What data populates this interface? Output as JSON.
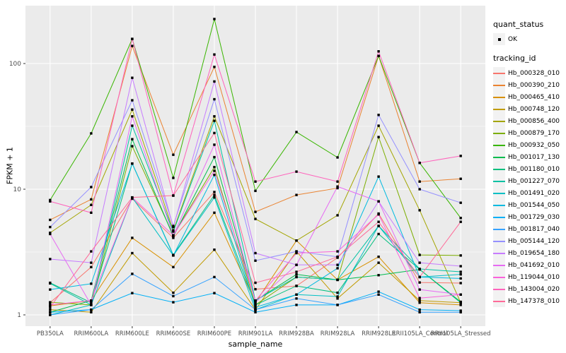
{
  "chart_data": {
    "type": "line",
    "title": "",
    "xlabel": "sample_name",
    "ylabel": "FPKM + 1",
    "y_scale": "log10",
    "ylim": [
      0.82,
      290
    ],
    "grid": true,
    "panel_bg": "#EBEBEB",
    "grid_color": "#FFFFFF",
    "point_color": "#000000",
    "tick_label_color": "#4D4D4D",
    "y_ticks": [
      {
        "label": "1",
        "value": 1
      },
      {
        "label": "10",
        "value": 10
      },
      {
        "label": "100",
        "value": 100
      }
    ],
    "y_minor_ticks": [
      3.162,
      31.62
    ],
    "categories": [
      "PB350LA",
      "RRIM600LA",
      "RRIM600LE",
      "RRIM600SE",
      "RRIM600PE",
      "RRIM901LA",
      "RRIM928BA",
      "RRIM928LA",
      "RRIM928LE",
      "RRII105LA_Control",
      "RRII105LA_Stressed"
    ],
    "series": [
      {
        "name": "Hb_000328_010",
        "color": "#F8766D",
        "values": [
          1.25,
          2.4,
          8.4,
          4.1,
          9.5,
          1.6,
          1.7,
          2.85,
          6.4,
          1.81,
          1.79
        ]
      },
      {
        "name": "Hb_000390_210",
        "color": "#EA8331",
        "values": [
          5.7,
          8.3,
          138,
          18.8,
          94,
          6.6,
          9.0,
          10.2,
          115,
          11.5,
          12.1
        ]
      },
      {
        "name": "Hb_000465_410",
        "color": "#D89000",
        "values": [
          1.18,
          1.3,
          4.1,
          2.4,
          6.5,
          1.25,
          3.9,
          1.9,
          2.9,
          1.25,
          1.2
        ]
      },
      {
        "name": "Hb_000748_120",
        "color": "#C09B00",
        "values": [
          1.1,
          1.05,
          3.1,
          1.5,
          3.3,
          1.1,
          3.2,
          1.35,
          2.6,
          1.3,
          1.25
        ]
      },
      {
        "name": "Hb_000856_400",
        "color": "#A3A500",
        "values": [
          4.5,
          7.5,
          43,
          4.7,
          38,
          5.8,
          3.9,
          6.2,
          32,
          6.8,
          1.25
        ]
      },
      {
        "name": "Hb_000879_170",
        "color": "#7CAE00",
        "values": [
          1.26,
          1.2,
          22,
          4.3,
          15,
          1.2,
          2.0,
          1.9,
          26,
          3.0,
          2.97
        ]
      },
      {
        "name": "Hb_000932_050",
        "color": "#39B600",
        "values": [
          8.2,
          27.8,
          157,
          12.3,
          226,
          9.7,
          28.5,
          17.9,
          115,
          16.2,
          5.9
        ]
      },
      {
        "name": "Hb_001017_130",
        "color": "#00BB4E",
        "values": [
          1.05,
          1.3,
          25,
          4.2,
          18,
          1.3,
          2.1,
          1.9,
          2.07,
          2.3,
          1.27
        ]
      },
      {
        "name": "Hb_001180_010",
        "color": "#00BF7D",
        "values": [
          1.8,
          1.25,
          16,
          3.0,
          9.0,
          1.2,
          1.7,
          1.5,
          4.4,
          2.3,
          1.25
        ]
      },
      {
        "name": "Hb_001227_070",
        "color": "#00C1A3",
        "values": [
          1.78,
          1.2,
          32,
          4.6,
          35,
          1.3,
          2.0,
          1.9,
          5.1,
          2.32,
          2.2
        ]
      },
      {
        "name": "Hb_001491_020",
        "color": "#00BFC4",
        "values": [
          1.0,
          1.2,
          8.6,
          2.97,
          8.6,
          1.1,
          1.45,
          1.4,
          5.1,
          2.0,
          2.1
        ]
      },
      {
        "name": "Hb_001544_050",
        "color": "#00BAE0",
        "values": [
          1.59,
          1.77,
          16,
          2.97,
          13,
          1.15,
          1.45,
          2.35,
          12.6,
          2.0,
          1.95
        ]
      },
      {
        "name": "Hb_001729_030",
        "color": "#00B0F6",
        "values": [
          1.05,
          1.1,
          1.49,
          1.26,
          1.49,
          1.05,
          1.2,
          1.2,
          1.53,
          1.1,
          1.08
        ]
      },
      {
        "name": "Hb_001817_040",
        "color": "#35A2FF",
        "values": [
          1.0,
          1.1,
          2.12,
          1.41,
          2.0,
          1.1,
          1.35,
          1.2,
          1.45,
          1.05,
          1.05
        ]
      },
      {
        "name": "Hb_005144_120",
        "color": "#9590FF",
        "values": [
          5.0,
          10.4,
          51,
          5.1,
          52,
          2.7,
          3.2,
          2.9,
          39,
          10.0,
          7.8
        ]
      },
      {
        "name": "Hb_019654_180",
        "color": "#C77CFF",
        "values": [
          2.78,
          2.6,
          77,
          5.0,
          72,
          3.1,
          2.5,
          2.5,
          8.0,
          2.6,
          2.44
        ]
      },
      {
        "name": "Hb_041692_010",
        "color": "#E76BF3",
        "values": [
          4.4,
          1.2,
          38,
          4.3,
          22.6,
          1.26,
          2.5,
          10.5,
          8.0,
          1.59,
          1.45
        ]
      },
      {
        "name": "Hb_119044_010",
        "color": "#FA62DB",
        "values": [
          1.2,
          1.3,
          8.6,
          4.3,
          14,
          1.3,
          3.1,
          3.2,
          6.3,
          1.36,
          1.45
        ]
      },
      {
        "name": "Hb_143004_020",
        "color": "#FF62BC",
        "values": [
          8.0,
          6.5,
          157,
          8.9,
          118,
          11.5,
          13.8,
          11.5,
          125,
          16.2,
          18.4
        ]
      },
      {
        "name": "Hb_147378_010",
        "color": "#FF6A98",
        "values": [
          1.15,
          3.2,
          8.6,
          8.9,
          28,
          1.8,
          2.2,
          2.9,
          5.5,
          2.0,
          5.5
        ]
      }
    ]
  },
  "axes": {
    "x_title": "sample_name",
    "y_title": "FPKM + 1"
  },
  "legend": {
    "quant_status_title": "quant_status",
    "quant_status_items": [
      {
        "label": "OK"
      }
    ],
    "tracking_title": "tracking_id"
  }
}
